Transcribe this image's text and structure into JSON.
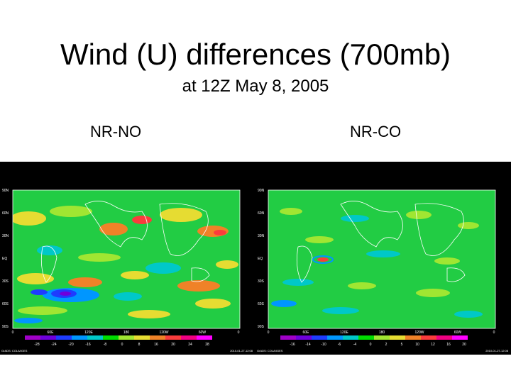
{
  "slide": {
    "title": "Wind (U) differences (700mb)",
    "subtitle": "at 12Z May 8, 2005"
  },
  "panels": [
    {
      "label": "NR-NO",
      "lat_ticks": [
        "90N",
        "60N",
        "30N",
        "EQ",
        "30S",
        "60S",
        "90S"
      ],
      "lon_ticks": [
        "0",
        "60E",
        "120E",
        "180",
        "120W",
        "60W",
        "0"
      ],
      "colorbar_ticks": [
        "-28",
        "-24",
        "-20",
        "-16",
        "-8",
        "0",
        "8",
        "16",
        "20",
        "24",
        "28"
      ],
      "footer_left": "GrADS: COLA/IGES",
      "footer_right": "2010-01-27-12:08"
    },
    {
      "label": "NR-CO",
      "lat_ticks": [
        "90N",
        "60N",
        "30N",
        "EQ",
        "30S",
        "60S",
        "90S"
      ],
      "lon_ticks": [
        "0",
        "60E",
        "120E",
        "180",
        "120W",
        "60W",
        "0"
      ],
      "colorbar_ticks": [
        "-16",
        "-14",
        "-10",
        "-6",
        "-4",
        "0",
        "2",
        "5",
        "10",
        "12",
        "16",
        "20"
      ],
      "footer_left": "GrADS: COLA/IGES",
      "footer_right": "2010-01-27-12:08"
    }
  ],
  "colors": {
    "colorbar": [
      "#a000c8",
      "#6e00dc",
      "#1e3cff",
      "#0096ff",
      "#00c8c8",
      "#00dc00",
      "#a0e632",
      "#e6dc32",
      "#f08228",
      "#fa3c3c",
      "#f00082",
      "#ff00ff"
    ],
    "map_background": "#22cc44"
  }
}
